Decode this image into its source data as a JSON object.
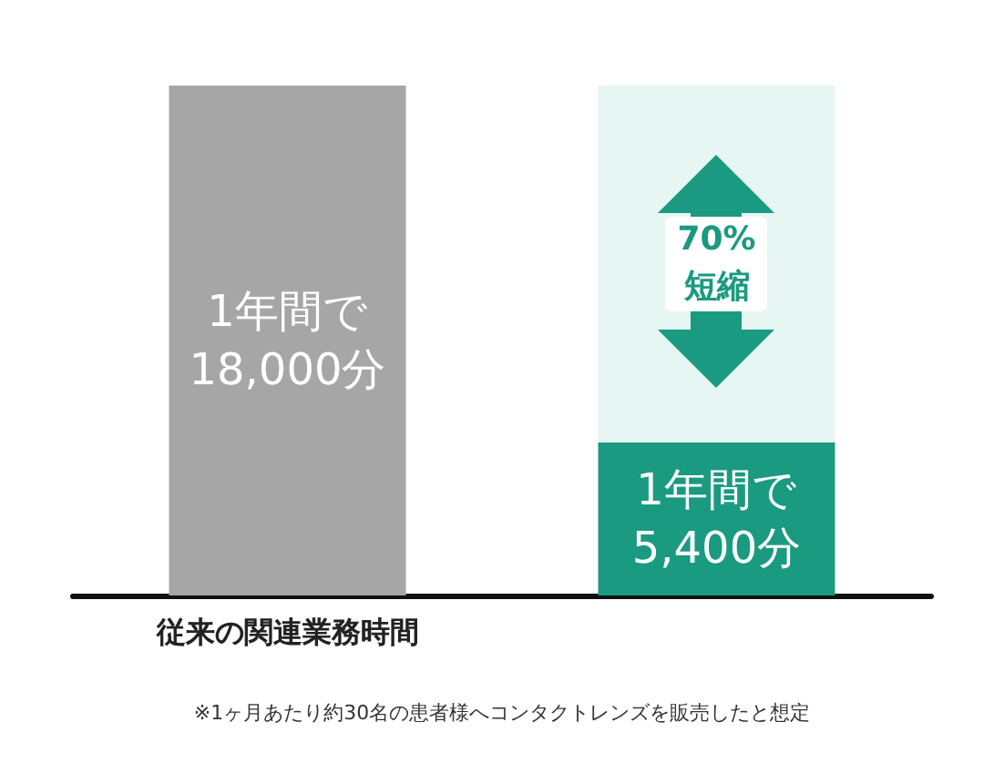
{
  "chart_data": {
    "type": "bar",
    "stacked": true,
    "categories": [
      "従来の関連業務時間",
      null
    ],
    "series": [
      {
        "colors": [
          "#a6a6a6",
          "#1a9a80"
        ],
        "values": [
          18000,
          5400
        ],
        "value_labels": [
          "1年間で\n18,000分",
          "1年間で\n5,400分"
        ]
      },
      {
        "color": "#e6f6f2",
        "values": [
          null,
          12600
        ]
      }
    ],
    "annotations": [
      "70%\n短縮",
      "※1ヶ月あたり約30名の患者様へコンタクトレンズを販売したと想定"
    ]
  }
}
